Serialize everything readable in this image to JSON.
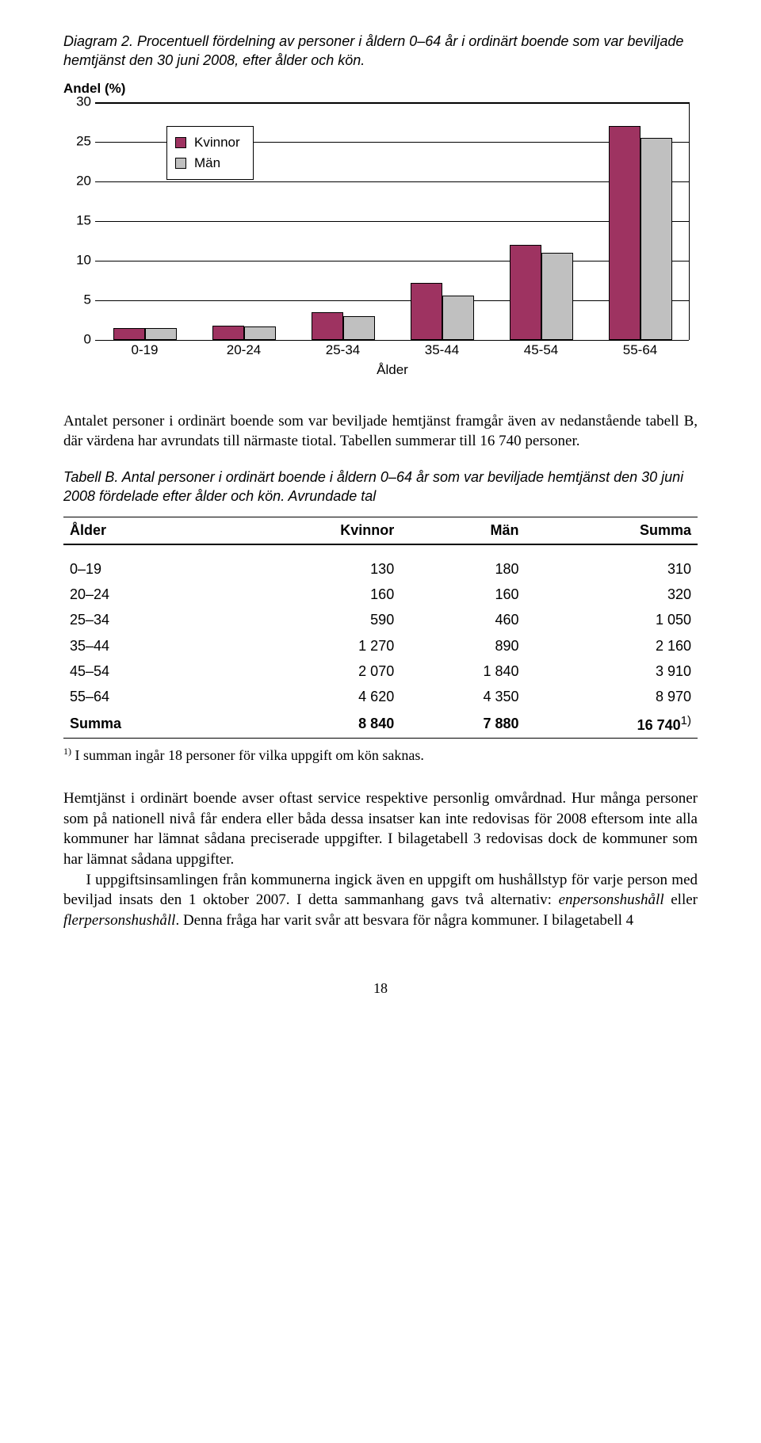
{
  "caption1": "Diagram 2. Procentuell fördelning av personer i åldern 0–64 år i ordinärt boende som var beviljade hemtjänst den 30 juni 2008, efter ålder och kön.",
  "chart": {
    "type": "bar",
    "y_title": "Andel (%)",
    "ylim": [
      0,
      30
    ],
    "ytick_step": 5,
    "yticks": [
      0,
      5,
      10,
      15,
      20,
      25,
      30
    ],
    "x_title": "Ålder",
    "categories": [
      "0-19",
      "20-24",
      "25-34",
      "35-44",
      "45-54",
      "55-64"
    ],
    "series": [
      {
        "label": "Kvinnor",
        "color": "#9e3361",
        "values": [
          1.5,
          1.8,
          3.5,
          7.2,
          12.0,
          27.0
        ]
      },
      {
        "label": "Män",
        "color": "#c0c0c0",
        "values": [
          1.5,
          1.7,
          3.0,
          5.6,
          11.0,
          25.5
        ]
      }
    ],
    "grid_color": "#000000",
    "background": "#ffffff"
  },
  "para1": "Antalet personer i ordinärt boende som var beviljade hemtjänst framgår även av nedanstående tabell B, där värdena har avrundats till närmaste tiotal. Tabellen summerar till 16 740 personer.",
  "table_caption": "Tabell B. Antal personer i ordinärt boende i åldern 0–64 år som var beviljade hemtjänst den 30 juni 2008 fördelade efter ålder och kön. Avrundade tal",
  "table": {
    "columns": [
      "Ålder",
      "Kvinnor",
      "Män",
      "Summa"
    ],
    "rows": [
      [
        "0–19",
        "130",
        "180",
        "310"
      ],
      [
        "20–24",
        "160",
        "160",
        "320"
      ],
      [
        "25–34",
        "590",
        "460",
        "1 050"
      ],
      [
        "35–44",
        "1 270",
        "890",
        "2 160"
      ],
      [
        "45–54",
        "2 070",
        "1 840",
        "3 910"
      ],
      [
        "55–64",
        "4 620",
        "4 350",
        "8 970"
      ]
    ],
    "sum_row": [
      "Summa",
      "8 840",
      "7 880",
      "16 740"
    ],
    "sum_note_marker": "1)"
  },
  "footnote": "I summan ingår 18 personer för vilka uppgift om kön saknas.",
  "footnote_marker": "1)",
  "para2a": "Hemtjänst i ordinärt boende avser oftast service respektive personlig omvårdnad. Hur många personer som på nationell nivå får endera eller båda dessa insatser kan inte redovisas för 2008 eftersom inte alla kommuner har lämnat sådana preciserade uppgifter. I bilagetabell 3 redovisas dock de kommuner som har lämnat sådana uppgifter.",
  "para2b_pre": "I uppgiftsinsamlingen från kommunerna ingick även en uppgift om hushållstyp för varje person med beviljad insats den 1 oktober 2007. I detta sammanhang gavs två alternativ: ",
  "para2b_it1": "enpersonshushåll",
  "para2b_mid": " eller ",
  "para2b_it2": "flerpersonshushåll",
  "para2b_post": ". Denna fråga har varit svår att besvara för några kommuner. I bilagetabell 4",
  "page_number": "18"
}
